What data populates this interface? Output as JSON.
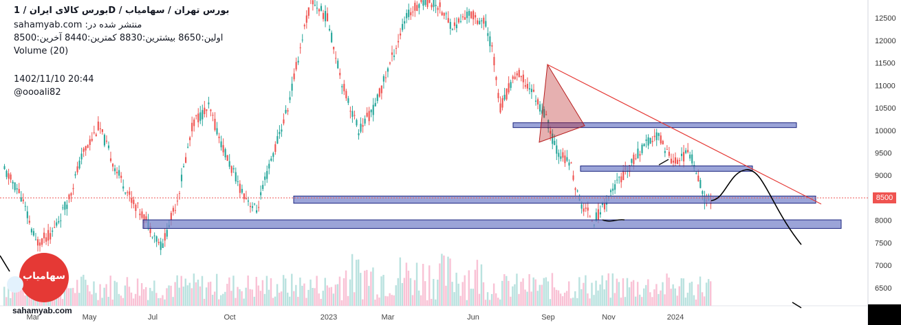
{
  "header": {
    "title": "بورس کالای ایران /  1D  /  بورس تهران / سهامیاب",
    "published": "sahamyab.com :منتشر شده در",
    "ohlc": "اولین:8650  بیشترین:8830  کمترین:8440  آخرین:8500",
    "volume": "Volume (20)",
    "datetime": "1402/11/10 20:44",
    "author": "@oooali82"
  },
  "watermark": "sahamyab.com",
  "logo_text": "سهامیاب",
  "last_price_label": "8500",
  "colors": {
    "up": "#26a69a",
    "down": "#ef5350",
    "zone_fill": "#7986cb",
    "zone_stroke": "#1a237e",
    "trendline": "#e53935",
    "triangle": "#b71c1c",
    "forecast": "#000000",
    "price_line": "#ef5350"
  },
  "chart_data": {
    "type": "candlestick",
    "ylim": [
      6100,
      12900
    ],
    "y_ticks": [
      6500,
      7000,
      7500,
      8000,
      8500,
      9000,
      9500,
      10000,
      10500,
      11000,
      11500,
      12000,
      12500
    ],
    "x_ticks": [
      "Mar",
      "May",
      "Jul",
      "Oct",
      "2023",
      "Mar",
      "Jun",
      "Sep",
      "Nov",
      "2024"
    ],
    "last_price": 8500,
    "price_path": [
      [
        0,
        9100
      ],
      [
        0.02,
        8600
      ],
      [
        0.04,
        7500
      ],
      [
        0.06,
        7700
      ],
      [
        0.08,
        8400
      ],
      [
        0.1,
        9500
      ],
      [
        0.12,
        10100
      ],
      [
        0.14,
        9200
      ],
      [
        0.16,
        8500
      ],
      [
        0.18,
        8000
      ],
      [
        0.2,
        7400
      ],
      [
        0.22,
        8500
      ],
      [
        0.24,
        10200
      ],
      [
        0.26,
        10500
      ],
      [
        0.28,
        9500
      ],
      [
        0.3,
        8700
      ],
      [
        0.32,
        8200
      ],
      [
        0.34,
        9400
      ],
      [
        0.36,
        10500
      ],
      [
        0.38,
        12200
      ],
      [
        0.39,
        12900
      ],
      [
        0.41,
        12500
      ],
      [
        0.43,
        11000
      ],
      [
        0.45,
        10000
      ],
      [
        0.47,
        10500
      ],
      [
        0.49,
        11500
      ],
      [
        0.51,
        12500
      ],
      [
        0.53,
        12900
      ],
      [
        0.55,
        12800
      ],
      [
        0.57,
        12300
      ],
      [
        0.59,
        12600
      ],
      [
        0.61,
        12400
      ],
      [
        0.62,
        11800
      ],
      [
        0.63,
        10500
      ],
      [
        0.65,
        11300
      ],
      [
        0.67,
        10900
      ],
      [
        0.69,
        10200
      ],
      [
        0.7,
        9600
      ],
      [
        0.72,
        9200
      ],
      [
        0.73,
        8400
      ],
      [
        0.75,
        8000
      ],
      [
        0.77,
        8600
      ],
      [
        0.79,
        9100
      ],
      [
        0.81,
        9600
      ],
      [
        0.83,
        9900
      ],
      [
        0.85,
        9300
      ],
      [
        0.87,
        9500
      ],
      [
        0.88,
        9100
      ],
      [
        0.89,
        8400
      ],
      [
        0.9,
        8500
      ]
    ],
    "zones": [
      {
        "label": "zone-10100",
        "y0": 10100,
        "y1": 10170
      },
      {
        "label": "zone-9150",
        "y0": 9090,
        "y1": 9210
      },
      {
        "label": "zone-8470",
        "y0": 8380,
        "y1": 8540
      },
      {
        "label": "zone-7920",
        "y0": 7820,
        "y1": 8010
      }
    ],
    "volume_max_hint": "Volume (20)"
  }
}
